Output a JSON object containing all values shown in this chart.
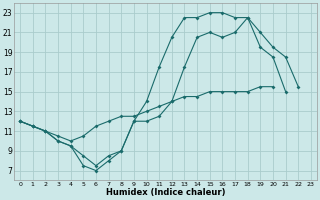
{
  "xlabel": "Humidex (Indice chaleur)",
  "background_color": "#cce8e8",
  "grid_color": "#aacccc",
  "line_color": "#1a6b6b",
  "xlim": [
    -0.5,
    23.5
  ],
  "ylim": [
    6,
    24
  ],
  "xticks": [
    0,
    1,
    2,
    3,
    4,
    5,
    6,
    7,
    8,
    9,
    10,
    11,
    12,
    13,
    14,
    15,
    16,
    17,
    18,
    19,
    20,
    21,
    22,
    23
  ],
  "yticks": [
    7,
    9,
    11,
    13,
    15,
    17,
    19,
    21,
    23
  ],
  "line1_x": [
    0,
    1,
    2,
    3,
    4,
    5,
    6,
    7,
    8,
    9,
    10,
    11,
    12,
    13,
    14,
    15,
    16,
    17,
    18,
    19,
    20,
    21,
    22
  ],
  "line1_y": [
    12.0,
    11.5,
    11.0,
    10.0,
    9.5,
    7.5,
    7.0,
    8.0,
    9.0,
    12.0,
    14.0,
    17.5,
    20.5,
    22.5,
    22.5,
    23.0,
    23.0,
    22.5,
    22.5,
    19.5,
    18.5,
    15.0,
    null
  ],
  "line2_x": [
    0,
    1,
    2,
    3,
    4,
    5,
    6,
    7,
    8,
    9,
    10,
    11,
    12,
    13,
    14,
    15,
    16,
    17,
    18,
    19,
    20,
    21,
    22,
    23
  ],
  "line2_y": [
    12.0,
    11.5,
    11.0,
    10.5,
    10.0,
    10.5,
    11.5,
    12.0,
    12.5,
    12.5,
    13.0,
    13.5,
    14.0,
    14.5,
    14.5,
    15.0,
    15.0,
    15.0,
    15.0,
    15.5,
    15.5,
    null,
    null,
    null
  ],
  "line3_x": [
    0,
    1,
    2,
    3,
    4,
    5,
    6,
    7,
    8,
    9,
    10,
    11,
    12,
    13,
    14,
    15,
    16,
    17,
    18,
    19,
    20,
    21,
    22,
    23
  ],
  "line3_y": [
    12.0,
    11.5,
    11.0,
    10.0,
    9.5,
    8.5,
    7.5,
    8.5,
    9.0,
    12.0,
    12.0,
    12.5,
    14.0,
    17.5,
    20.5,
    21.0,
    20.5,
    21.0,
    22.5,
    21.0,
    19.5,
    18.5,
    15.5,
    null
  ]
}
